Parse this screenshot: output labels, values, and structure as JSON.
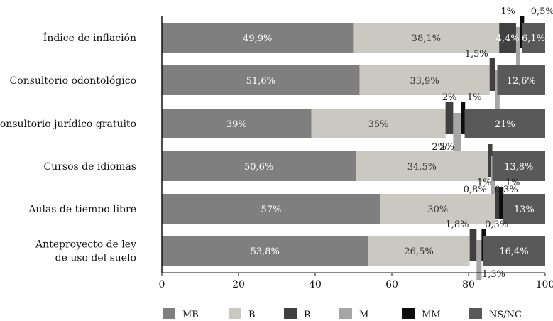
{
  "chart_data": {
    "type": "bar",
    "orientation": "horizontal",
    "stacked": true,
    "title": "",
    "xlabel": "",
    "ylabel": "",
    "xlim": [
      0,
      100
    ],
    "x_ticks": [
      "0",
      "20",
      "40",
      "60",
      "80",
      "100"
    ],
    "grid": false,
    "legend_position": "bottom",
    "categories": [
      [
        "Índice de inflación"
      ],
      [
        "Consultorio odontológico"
      ],
      [
        "Consultorio jurídico gratuito"
      ],
      [
        "Cursos de idiomas"
      ],
      [
        "Aulas de tiempo libre"
      ],
      [
        "Anteproyecto de ley",
        "de uso del suelo"
      ]
    ],
    "series": [
      {
        "name": "MB",
        "color": "#7f7f7f",
        "values": [
          49.9,
          51.6,
          39,
          50.6,
          57,
          53.8
        ],
        "labels": [
          "49,9%",
          "51,6%",
          "39%",
          "50,6%",
          "57%",
          "53,8%"
        ]
      },
      {
        "name": "B",
        "color": "#c9c8c1",
        "values": [
          38.1,
          33.9,
          35,
          34.5,
          30,
          26.5
        ],
        "labels": [
          "38,1%",
          "33,9%",
          "35%",
          "34,5%",
          "30%",
          "26,5%"
        ]
      },
      {
        "name": "R",
        "color": "#404040",
        "values": [
          4.4,
          1.5,
          2,
          0.8,
          1,
          1.8
        ],
        "labels": [
          "4,4%",
          "1,5%",
          "2%",
          "0,8%",
          "1%",
          "1,8%"
        ]
      },
      {
        "name": "M",
        "color": "#a6a6a6",
        "values": [
          1,
          0.5,
          2,
          0.3,
          0,
          1.3
        ],
        "labels": [
          "1%",
          "0,5%",
          "2%",
          "0,3%",
          "",
          "1,3%"
        ]
      },
      {
        "name": "MM",
        "color": "#0d0d0d",
        "values": [
          0.5,
          0,
          1,
          0,
          1,
          0.3
        ],
        "labels": [
          "0,5%",
          "",
          "1%",
          "",
          "1%",
          "0,3%"
        ]
      },
      {
        "name": "NS/NC",
        "color": "#595959",
        "values": [
          6.1,
          12.6,
          21,
          13.8,
          13,
          16.4
        ],
        "labels": [
          "6,1%",
          "12,6%",
          "21%",
          "13,8%",
          "13%",
          "16,4%"
        ]
      }
    ]
  }
}
